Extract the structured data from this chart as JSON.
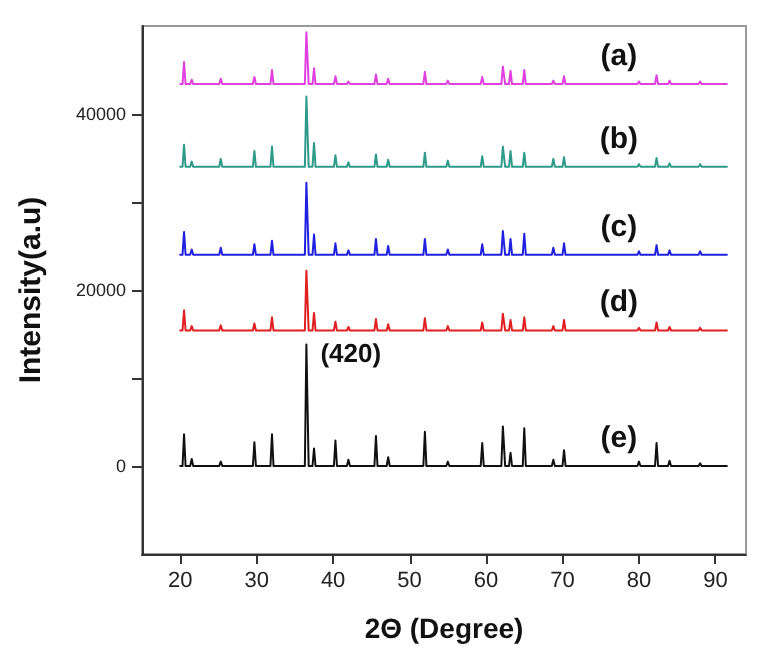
{
  "chart_data": {
    "type": "line",
    "xlabel": "2Θ (Degree)",
    "ylabel": "Intensity(a.u)",
    "xlim": [
      15,
      94
    ],
    "xticks": [
      20,
      30,
      40,
      50,
      60,
      70,
      80,
      90
    ],
    "ylim": [
      -10000,
      50000
    ],
    "yticks": [
      0,
      {
        "value": 10000,
        "label": null
      },
      20000,
      {
        "value": 30000,
        "label": null
      },
      40000
    ],
    "grid": false,
    "legend": false,
    "marker": "none",
    "line_style": "solid",
    "annotations": [
      {
        "text": "(420)",
        "x": 36.5,
        "y": 13800
      }
    ],
    "x": [
      20,
      20.3,
      20.5,
      20.7,
      21.3,
      21.5,
      21.7,
      25.1,
      25.3,
      25.5,
      29.5,
      29.7,
      29.9,
      31.8,
      32,
      32.2,
      36.3,
      36.5,
      36.8,
      37.3,
      37.5,
      37.7,
      40.1,
      40.3,
      40.5,
      41.8,
      42,
      42.2,
      45.4,
      45.6,
      45.8,
      47,
      47.2,
      47.4,
      51.8,
      52,
      52.2,
      54.8,
      55,
      55.2,
      59.3,
      59.5,
      59.7,
      62,
      62.2,
      62.5,
      63,
      63.2,
      63.4,
      64.8,
      65,
      65.2,
      68.6,
      68.8,
      69,
      70,
      70.2,
      70.4,
      79.8,
      80,
      80.2,
      82.1,
      82.3,
      82.5,
      83.8,
      84,
      84.2,
      87.8,
      88,
      88.2,
      91.5
    ],
    "series": [
      {
        "name": "(a)",
        "color": "#e040e0",
        "values": [
          43400,
          43400,
          45900,
          43400,
          43400,
          43900,
          43400,
          43400,
          44000,
          43400,
          43400,
          44200,
          43400,
          43400,
          45000,
          43400,
          43400,
          49300,
          43400,
          43400,
          45200,
          43400,
          43400,
          44300,
          43400,
          43400,
          43700,
          43400,
          43400,
          44500,
          43400,
          43400,
          44000,
          43400,
          43400,
          44800,
          43400,
          43400,
          43800,
          43400,
          43400,
          44200,
          43400,
          43400,
          45400,
          43400,
          43400,
          44900,
          43400,
          43400,
          45000,
          43400,
          43400,
          43800,
          43400,
          43400,
          44300,
          43400,
          43400,
          43700,
          43400,
          43400,
          44400,
          43400,
          43400,
          43800,
          43400,
          43400,
          43700,
          43400,
          43400
        ]
      },
      {
        "name": "(b)",
        "color": "#2e9a8a",
        "values": [
          34000,
          34000,
          36500,
          34000,
          34000,
          34600,
          34000,
          34000,
          34900,
          34000,
          34000,
          35800,
          34000,
          34000,
          36300,
          34000,
          34000,
          42000,
          34000,
          34000,
          36700,
          34000,
          34000,
          35300,
          34000,
          34000,
          34500,
          34000,
          34000,
          35400,
          34000,
          34000,
          34800,
          34000,
          34000,
          35600,
          34000,
          34000,
          34700,
          34000,
          34000,
          35200,
          34000,
          34000,
          36300,
          34000,
          34000,
          35800,
          34000,
          34000,
          35600,
          34000,
          34000,
          34900,
          34000,
          34000,
          35100,
          34000,
          34000,
          34300,
          34000,
          34000,
          35000,
          34000,
          34000,
          34400,
          34000,
          34000,
          34300,
          34000,
          34000
        ]
      },
      {
        "name": "(c)",
        "color": "#2020e0",
        "values": [
          24000,
          24000,
          26600,
          24000,
          24000,
          24600,
          24000,
          24000,
          24800,
          24000,
          24000,
          25200,
          24000,
          24000,
          25600,
          24000,
          24000,
          32200,
          24000,
          24000,
          26300,
          24000,
          24000,
          25300,
          24000,
          24000,
          24500,
          24000,
          24000,
          25800,
          24000,
          24000,
          25000,
          24000,
          24000,
          25800,
          24000,
          24000,
          24600,
          24000,
          24000,
          25200,
          24000,
          24000,
          26700,
          24000,
          24000,
          25800,
          24000,
          24000,
          26400,
          24000,
          24000,
          24800,
          24000,
          24000,
          25300,
          24000,
          24000,
          24400,
          24000,
          24000,
          25100,
          24000,
          24000,
          24500,
          24000,
          24000,
          24400,
          24000,
          24000
        ]
      },
      {
        "name": "(d)",
        "color": "#e02020",
        "values": [
          15400,
          15400,
          17700,
          15400,
          15400,
          15900,
          15400,
          15400,
          16000,
          15400,
          15400,
          16200,
          15400,
          15400,
          16900,
          15400,
          15400,
          22200,
          15400,
          15400,
          17400,
          15400,
          15400,
          16400,
          15400,
          15400,
          15800,
          15400,
          15400,
          16700,
          15400,
          15400,
          16100,
          15400,
          15400,
          16800,
          15400,
          15400,
          15900,
          15400,
          15400,
          16300,
          15400,
          15400,
          17300,
          15400,
          15400,
          16600,
          15400,
          15400,
          16900,
          15400,
          15400,
          15900,
          15400,
          15400,
          16600,
          15400,
          15400,
          15700,
          15400,
          15400,
          16300,
          15400,
          15400,
          15800,
          15400,
          15400,
          15700,
          15400,
          15400
        ]
      },
      {
        "name": "(e)",
        "color": "#101010",
        "values": [
          0,
          0,
          3600,
          0,
          0,
          800,
          0,
          0,
          500,
          0,
          0,
          2700,
          0,
          0,
          3600,
          0,
          0,
          13800,
          0,
          0,
          2000,
          0,
          0,
          2900,
          0,
          0,
          700,
          0,
          0,
          3400,
          0,
          0,
          1000,
          0,
          0,
          3900,
          0,
          0,
          500,
          0,
          0,
          2600,
          0,
          0,
          4500,
          0,
          0,
          1500,
          0,
          0,
          4300,
          0,
          0,
          700,
          0,
          0,
          1800,
          0,
          0,
          500,
          0,
          0,
          2600,
          0,
          0,
          600,
          0,
          0,
          300,
          0,
          0
        ]
      }
    ]
  }
}
